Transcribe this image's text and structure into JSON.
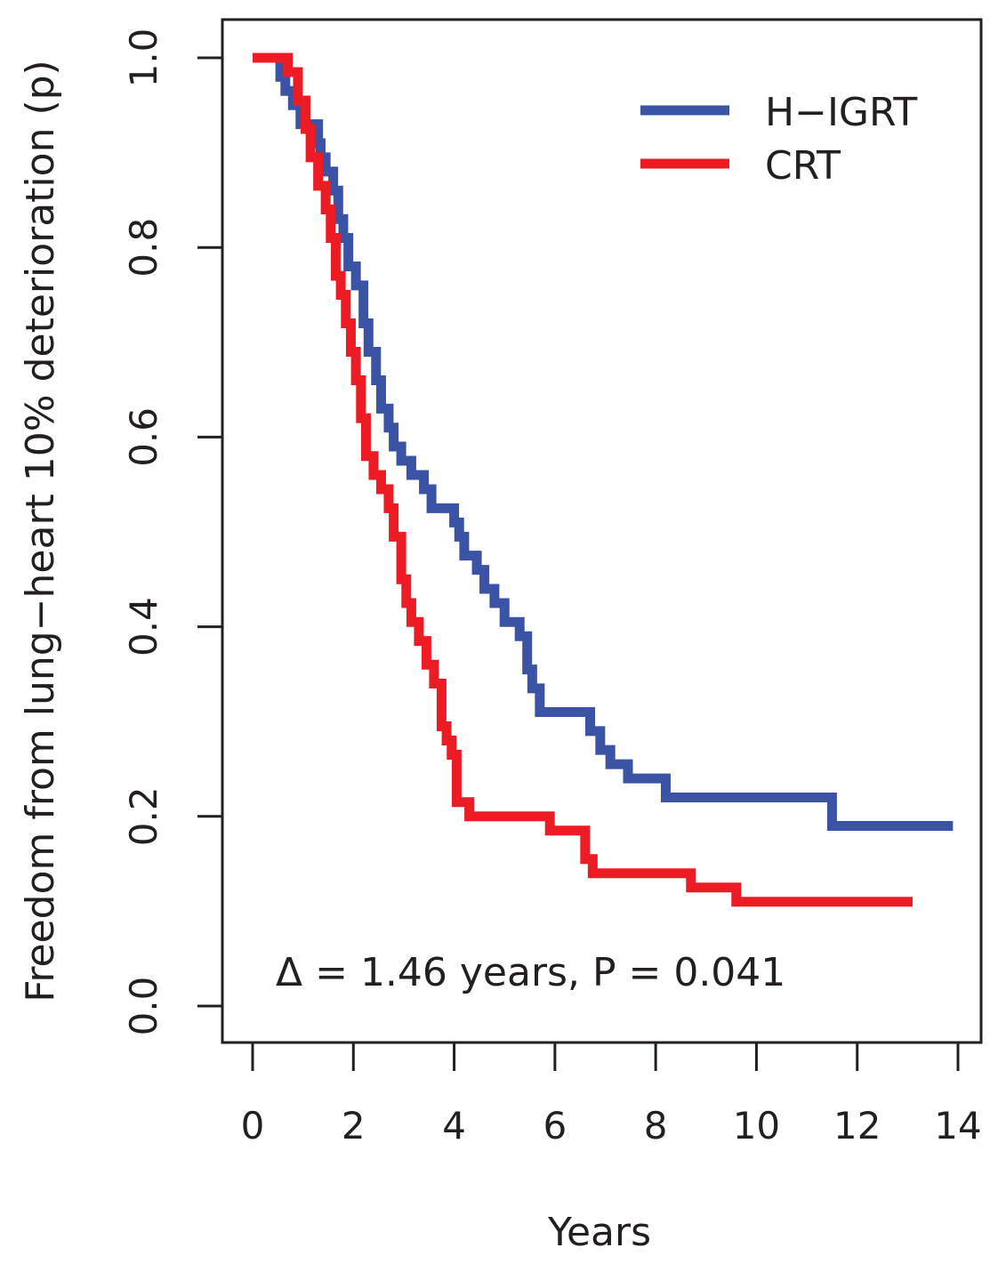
{
  "chart_data": {
    "type": "line",
    "title": "",
    "xlabel": "Years",
    "ylabel": "Freedom from lung−heart 10% deterioration (p)",
    "xlim": [
      0,
      14
    ],
    "ylim": [
      0,
      1
    ],
    "x_ticks": [
      0,
      2,
      4,
      6,
      8,
      10,
      12,
      14
    ],
    "x_tick_labels": [
      "0",
      "2",
      "4",
      "6",
      "8",
      "10",
      "12",
      "14"
    ],
    "y_ticks": [
      0,
      0.2,
      0.4,
      0.6,
      0.8,
      1.0
    ],
    "y_tick_labels": [
      "0.0",
      "0.2",
      "0.4",
      "0.6",
      "0.8",
      "1.0"
    ],
    "grid": false,
    "legend_position": "top-right",
    "annotation": "Δ = 1.46 years, P = 0.041",
    "series": [
      {
        "name": "H−IGRT",
        "color": "#3a53a4",
        "step": true,
        "x": [
          0,
          0.55,
          0.65,
          0.8,
          0.95,
          1.05,
          1.3,
          1.35,
          1.45,
          1.6,
          1.7,
          1.8,
          1.9,
          2.05,
          2.2,
          2.3,
          2.45,
          2.55,
          2.7,
          2.8,
          2.95,
          3.15,
          3.4,
          3.55,
          3.75,
          4.0,
          4.1,
          4.2,
          4.45,
          4.6,
          4.8,
          5.0,
          5.3,
          5.45,
          5.55,
          5.7,
          6.7,
          6.9,
          7.1,
          7.45,
          8.2,
          9.0,
          11.5,
          13.9
        ],
        "y": [
          1.0,
          0.98,
          0.965,
          0.95,
          0.93,
          0.93,
          0.91,
          0.895,
          0.88,
          0.86,
          0.83,
          0.81,
          0.78,
          0.76,
          0.72,
          0.69,
          0.66,
          0.63,
          0.61,
          0.59,
          0.575,
          0.56,
          0.545,
          0.525,
          0.525,
          0.51,
          0.495,
          0.475,
          0.46,
          0.44,
          0.425,
          0.405,
          0.39,
          0.355,
          0.335,
          0.31,
          0.29,
          0.27,
          0.255,
          0.24,
          0.22,
          0.22,
          0.19,
          0.19
        ]
      },
      {
        "name": "CRT",
        "color": "#ed1c24",
        "step": true,
        "x": [
          0,
          0.7,
          0.9,
          1.05,
          1.15,
          1.3,
          1.45,
          1.55,
          1.65,
          1.75,
          1.85,
          1.95,
          2.05,
          2.15,
          2.25,
          2.4,
          2.55,
          2.7,
          2.8,
          2.95,
          3.05,
          3.15,
          3.3,
          3.45,
          3.6,
          3.75,
          3.85,
          3.95,
          4.05,
          4.3,
          5.4,
          5.9,
          6.5,
          6.6,
          6.75,
          8.7,
          9.6,
          13.1
        ],
        "y": [
          1.0,
          0.985,
          0.955,
          0.925,
          0.895,
          0.865,
          0.84,
          0.81,
          0.77,
          0.75,
          0.72,
          0.69,
          0.66,
          0.62,
          0.58,
          0.56,
          0.545,
          0.525,
          0.495,
          0.45,
          0.425,
          0.405,
          0.385,
          0.36,
          0.34,
          0.295,
          0.28,
          0.265,
          0.215,
          0.2,
          0.2,
          0.185,
          0.185,
          0.155,
          0.14,
          0.125,
          0.11,
          0.11
        ]
      }
    ]
  }
}
